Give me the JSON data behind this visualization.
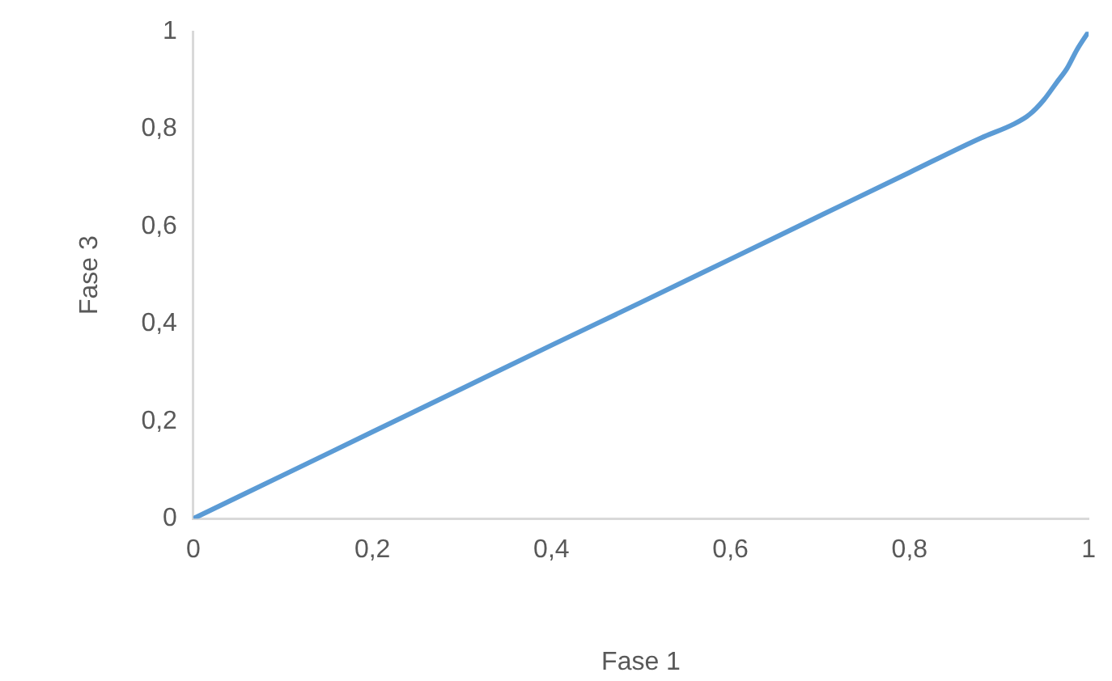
{
  "chart_data": {
    "type": "line",
    "xlabel": "Fase 1",
    "ylabel": "Fase 3",
    "x": [
      0,
      0.1,
      0.2,
      0.3,
      0.4,
      0.5,
      0.6,
      0.7,
      0.8,
      0.88,
      0.916,
      0.934,
      0.95,
      0.964,
      0.976,
      0.987,
      1
    ],
    "series": [
      {
        "color": "#5b9bd5",
        "values": [
          0,
          0.089,
          0.178,
          0.267,
          0.356,
          0.444,
          0.533,
          0.622,
          0.711,
          0.782,
          0.81,
          0.83,
          0.86,
          0.895,
          0.925,
          0.963,
          1
        ]
      }
    ],
    "xlim": [
      0,
      1
    ],
    "ylim": [
      0,
      1
    ],
    "xticks": [
      0,
      {
        "value": 0.2,
        "label": "0,2"
      },
      {
        "value": 0.4,
        "label": "0,4"
      },
      {
        "value": 0.6,
        "label": "0,6"
      },
      {
        "value": 0.8,
        "label": "0,8"
      },
      1
    ],
    "yticks": [
      0,
      {
        "value": 0.2,
        "label": "0,2"
      },
      {
        "value": 0.4,
        "label": "0,4"
      },
      {
        "value": 0.6,
        "label": "0,6"
      },
      {
        "value": 0.8,
        "label": "0,8"
      },
      1
    ],
    "grid": false,
    "legend": false,
    "marker": "none",
    "line_style": "solid"
  }
}
